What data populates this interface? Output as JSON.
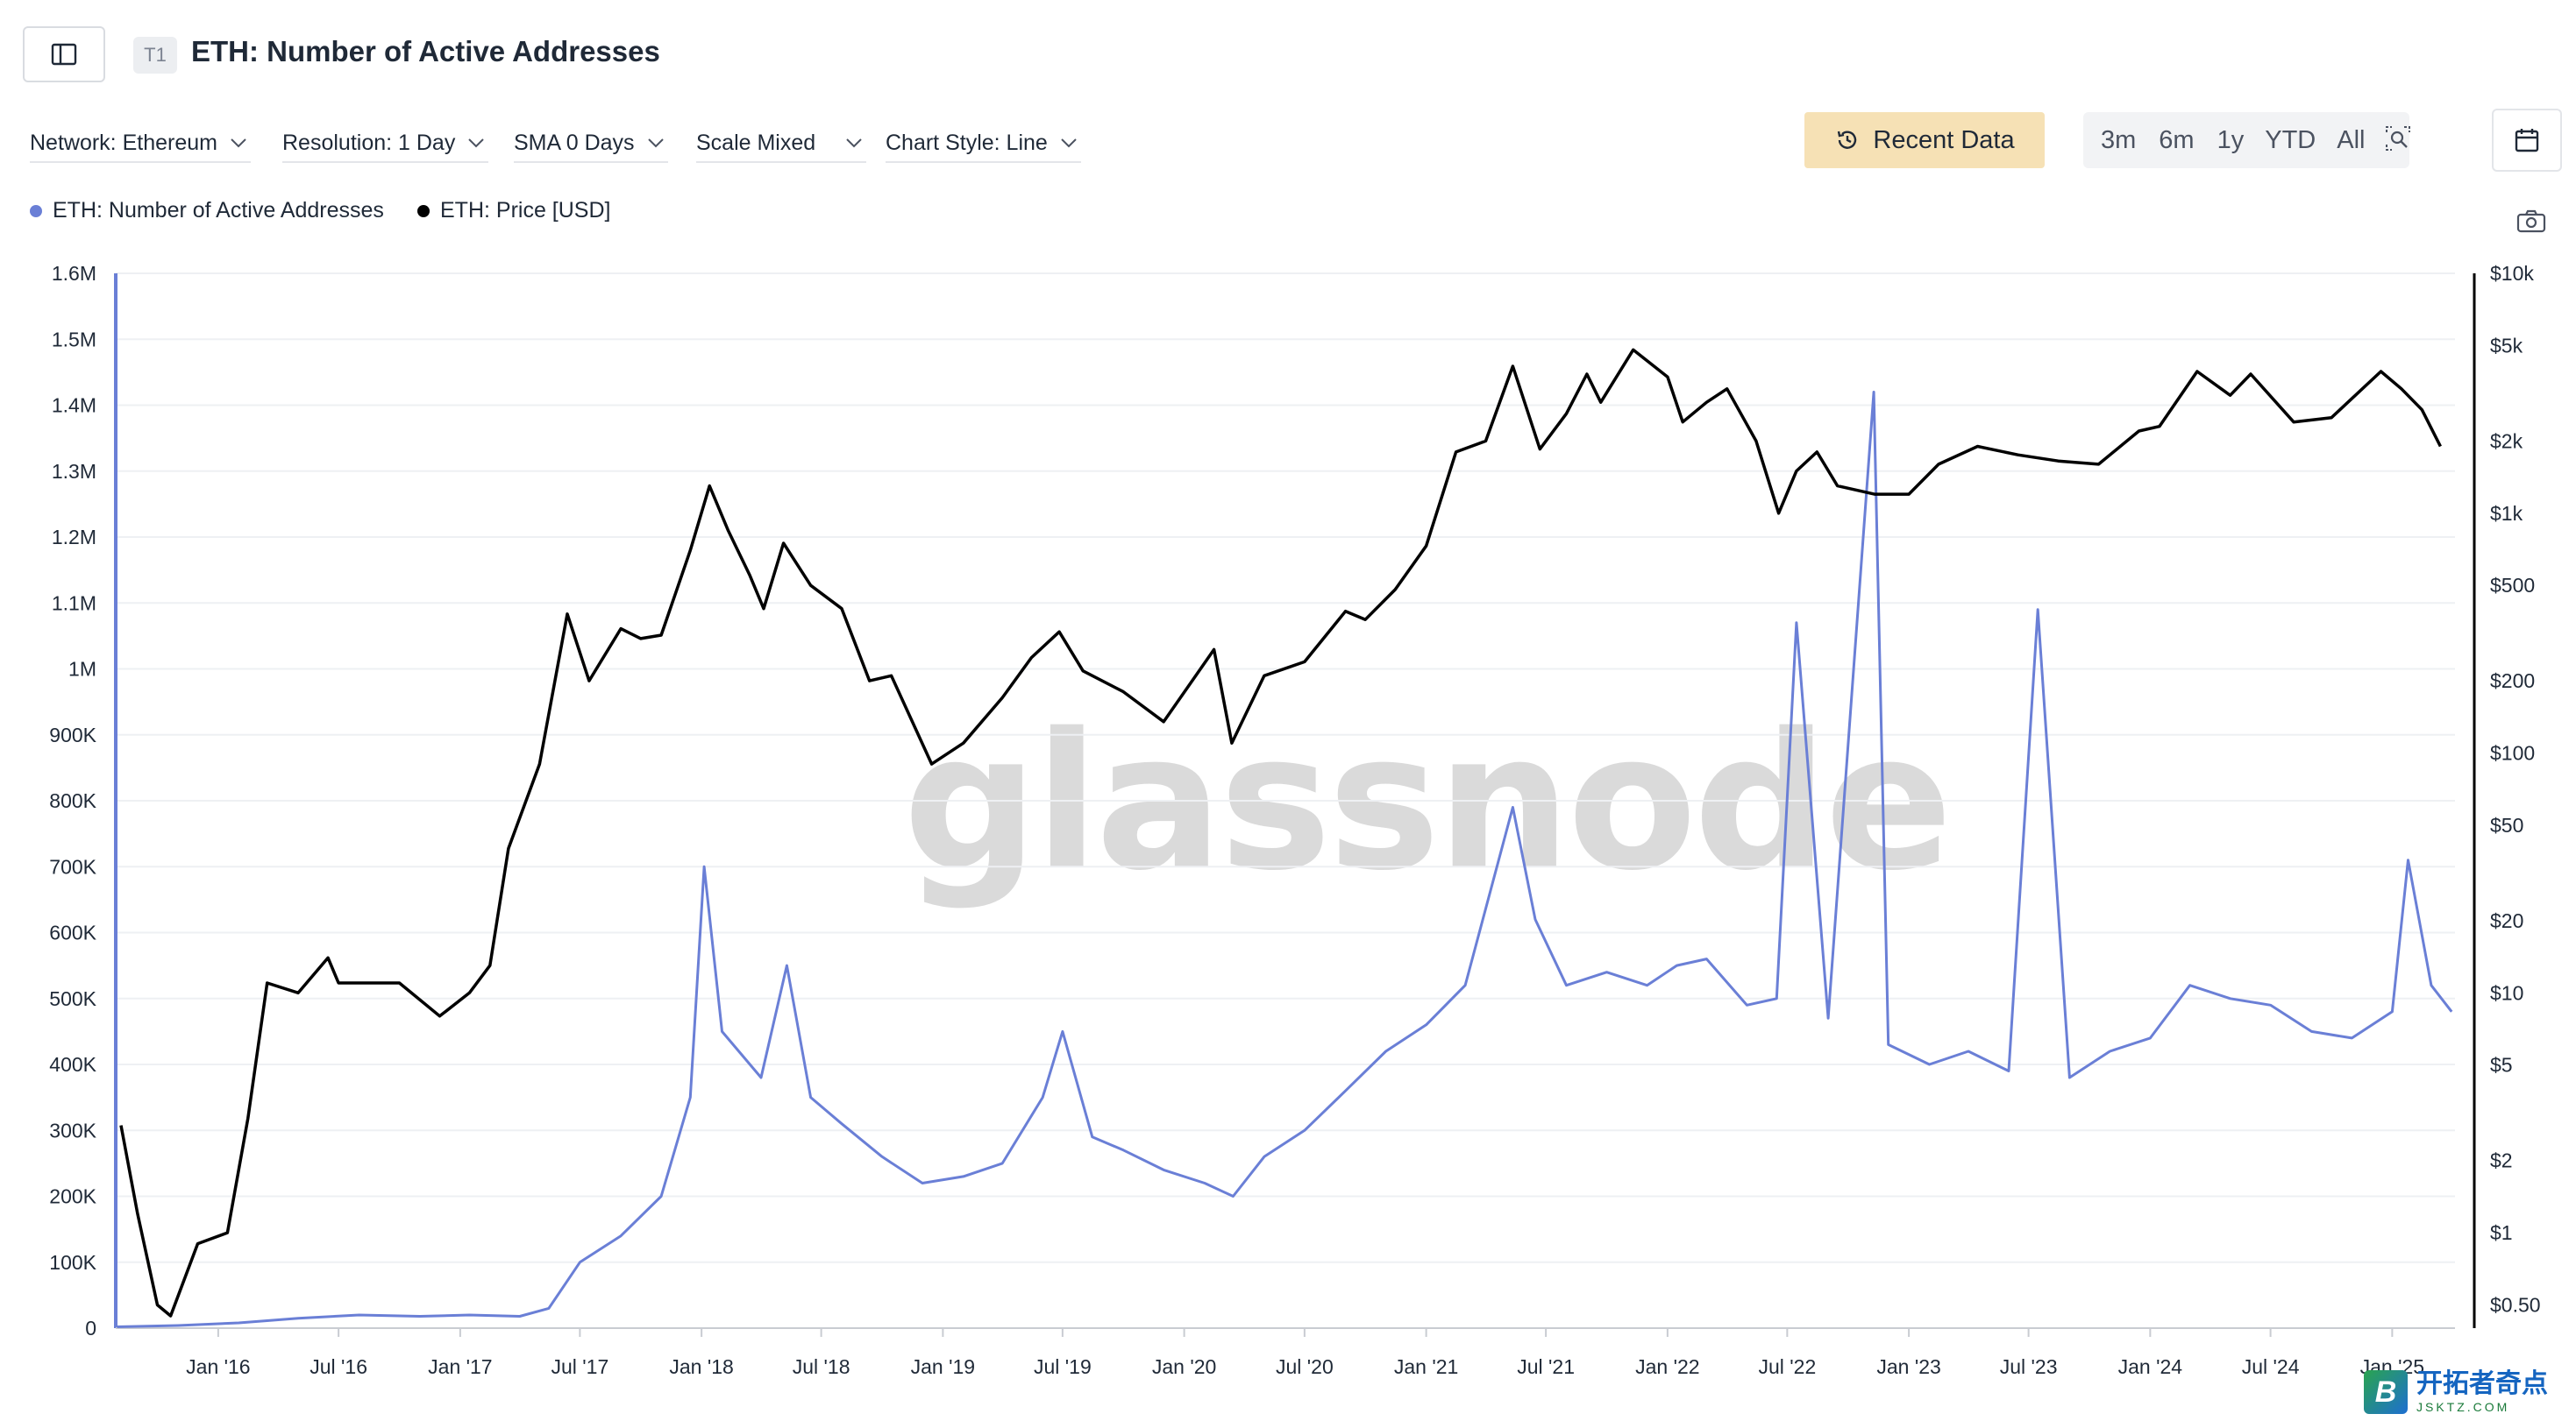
{
  "header": {
    "tag": "T1",
    "title": "ETH: Number of Active Addresses"
  },
  "toolbar": {
    "network": "Network: Ethereum",
    "resolution": "Resolution: 1 Day",
    "sma": "SMA 0 Days",
    "scale": "Scale Mixed",
    "chart_style": "Chart Style: Line",
    "recent_data": "Recent Data",
    "ranges": [
      "3m",
      "6m",
      "1y",
      "YTD",
      "All"
    ]
  },
  "legend": {
    "series1": "ETH: Number of Active Addresses",
    "series2": "ETH: Price [USD]"
  },
  "watermark": "glassnode",
  "badge": {
    "cn": "开拓者奇点",
    "en": "JSKTZ.COM"
  },
  "colors": {
    "addresses": "#6a7fd6",
    "price": "#000000",
    "recent_button": "#f6e1b5"
  },
  "chart_data": {
    "type": "line",
    "x_ticks": [
      "Jan '16",
      "Jul '16",
      "Jan '17",
      "Jul '17",
      "Jan '18",
      "Jul '18",
      "Jan '19",
      "Jul '19",
      "Jan '20",
      "Jul '20",
      "Jan '21",
      "Jul '21",
      "Jan '22",
      "Jul '22",
      "Jan '23",
      "Jul '23",
      "Jan '24",
      "Jul '24",
      "Jan '25"
    ],
    "y_left": {
      "ticks": [
        "0",
        "100K",
        "200K",
        "300K",
        "400K",
        "500K",
        "600K",
        "700K",
        "800K",
        "900K",
        "1M",
        "1.1M",
        "1.2M",
        "1.3M",
        "1.4M",
        "1.5M",
        "1.6M"
      ],
      "range": [
        0,
        1600000
      ]
    },
    "y_right": {
      "scale": "log",
      "ticks": [
        "$0.50",
        "$1",
        "$2",
        "$5",
        "$10",
        "$20",
        "$50",
        "$100",
        "$200",
        "$500",
        "$1k",
        "$2k",
        "$5k",
        "$10k"
      ],
      "range": [
        0.4,
        10000
      ]
    },
    "series": [
      {
        "name": "ETH: Number of Active Addresses",
        "axis": "left",
        "x": [
          "2015-08-01",
          "2015-11-01",
          "2016-02-01",
          "2016-05-01",
          "2016-08-01",
          "2016-11-01",
          "2017-01-15",
          "2017-04-01",
          "2017-05-15",
          "2017-07-01",
          "2017-09-01",
          "2017-11-01",
          "2017-12-15",
          "2018-01-05",
          "2018-02-01",
          "2018-04-01",
          "2018-05-10",
          "2018-06-15",
          "2018-08-01",
          "2018-10-01",
          "2018-12-01",
          "2019-02-01",
          "2019-04-01",
          "2019-06-01",
          "2019-07-01",
          "2019-08-15",
          "2019-10-01",
          "2019-12-01",
          "2020-02-01",
          "2020-03-15",
          "2020-05-01",
          "2020-07-01",
          "2020-09-01",
          "2020-11-01",
          "2021-01-01",
          "2021-03-01",
          "2021-05-12",
          "2021-06-15",
          "2021-08-01",
          "2021-10-01",
          "2021-12-01",
          "2022-01-15",
          "2022-03-01",
          "2022-05-01",
          "2022-06-15",
          "2022-07-15",
          "2022-09-01",
          "2022-11-09",
          "2022-12-01",
          "2023-02-01",
          "2023-04-01",
          "2023-06-01",
          "2023-07-15",
          "2023-09-01",
          "2023-11-01",
          "2024-01-01",
          "2024-03-01",
          "2024-05-01",
          "2024-07-01",
          "2024-09-01",
          "2024-11-01",
          "2025-01-01",
          "2025-01-25",
          "2025-03-01",
          "2025-04-01"
        ],
        "values": [
          2000,
          4000,
          8000,
          15000,
          20000,
          18000,
          20000,
          18000,
          30000,
          100000,
          140000,
          200000,
          350000,
          700000,
          450000,
          380000,
          550000,
          350000,
          310000,
          260000,
          220000,
          230000,
          250000,
          350000,
          450000,
          290000,
          270000,
          240000,
          220000,
          200000,
          260000,
          300000,
          360000,
          420000,
          460000,
          520000,
          790000,
          620000,
          520000,
          540000,
          520000,
          550000,
          560000,
          490000,
          500000,
          1070000,
          470000,
          1420000,
          430000,
          400000,
          420000,
          390000,
          1090000,
          380000,
          420000,
          440000,
          520000,
          500000,
          490000,
          450000,
          440000,
          480000,
          710000,
          520000,
          480000
        ]
      },
      {
        "name": "ETH: Price [USD]",
        "axis": "right",
        "x": [
          "2015-08-07",
          "2015-09-01",
          "2015-10-01",
          "2015-10-21",
          "2015-12-01",
          "2016-01-15",
          "2016-02-15",
          "2016-03-15",
          "2016-05-01",
          "2016-06-15",
          "2016-07-01",
          "2016-08-15",
          "2016-10-01",
          "2016-12-01",
          "2017-01-15",
          "2017-02-15",
          "2017-03-15",
          "2017-05-01",
          "2017-06-12",
          "2017-07-15",
          "2017-09-01",
          "2017-10-01",
          "2017-11-01",
          "2017-12-15",
          "2018-01-13",
          "2018-02-10",
          "2018-03-15",
          "2018-04-05",
          "2018-05-05",
          "2018-06-15",
          "2018-08-01",
          "2018-09-12",
          "2018-10-15",
          "2018-12-15",
          "2019-02-01",
          "2019-04-01",
          "2019-05-15",
          "2019-06-26",
          "2019-08-01",
          "2019-10-01",
          "2019-12-01",
          "2020-02-15",
          "2020-03-13",
          "2020-05-01",
          "2020-07-01",
          "2020-09-01",
          "2020-10-01",
          "2020-11-15",
          "2021-01-01",
          "2021-02-15",
          "2021-04-01",
          "2021-05-12",
          "2021-06-22",
          "2021-08-01",
          "2021-09-01",
          "2021-09-22",
          "2021-11-10",
          "2022-01-01",
          "2022-01-24",
          "2022-03-01",
          "2022-04-01",
          "2022-05-15",
          "2022-06-18",
          "2022-07-15",
          "2022-08-15",
          "2022-09-15",
          "2022-11-10",
          "2023-01-01",
          "2023-02-15",
          "2023-04-15",
          "2023-06-15",
          "2023-08-15",
          "2023-10-15",
          "2023-12-15",
          "2024-01-15",
          "2024-03-12",
          "2024-05-01",
          "2024-06-01",
          "2024-08-05",
          "2024-10-01",
          "2024-12-15",
          "2025-01-15",
          "2025-02-15",
          "2025-03-15"
        ],
        "values": [
          2.8,
          1.2,
          0.5,
          0.45,
          0.9,
          1.0,
          3.0,
          11.0,
          10.0,
          14.0,
          11.0,
          11.0,
          11.0,
          8.0,
          10.0,
          13.0,
          40.0,
          90.0,
          380.0,
          200.0,
          330.0,
          300.0,
          310.0,
          700.0,
          1300.0,
          850.0,
          550.0,
          400.0,
          750.0,
          500.0,
          400.0,
          200.0,
          210.0,
          90.0,
          110.0,
          170.0,
          250.0,
          320.0,
          220.0,
          180.0,
          135.0,
          270.0,
          110.0,
          210.0,
          240.0,
          390.0,
          360.0,
          480.0,
          730.0,
          1800.0,
          2000.0,
          4100.0,
          1850.0,
          2600.0,
          3800.0,
          2900.0,
          4800.0,
          3700.0,
          2400.0,
          2900.0,
          3300.0,
          2000.0,
          1000.0,
          1500.0,
          1800.0,
          1300.0,
          1200.0,
          1200.0,
          1600.0,
          1900.0,
          1750.0,
          1650.0,
          1600.0,
          2200.0,
          2300.0,
          3900.0,
          3100.0,
          3800.0,
          2400.0,
          2500.0,
          3900.0,
          3300.0,
          2700.0,
          1900.0
        ]
      }
    ]
  }
}
